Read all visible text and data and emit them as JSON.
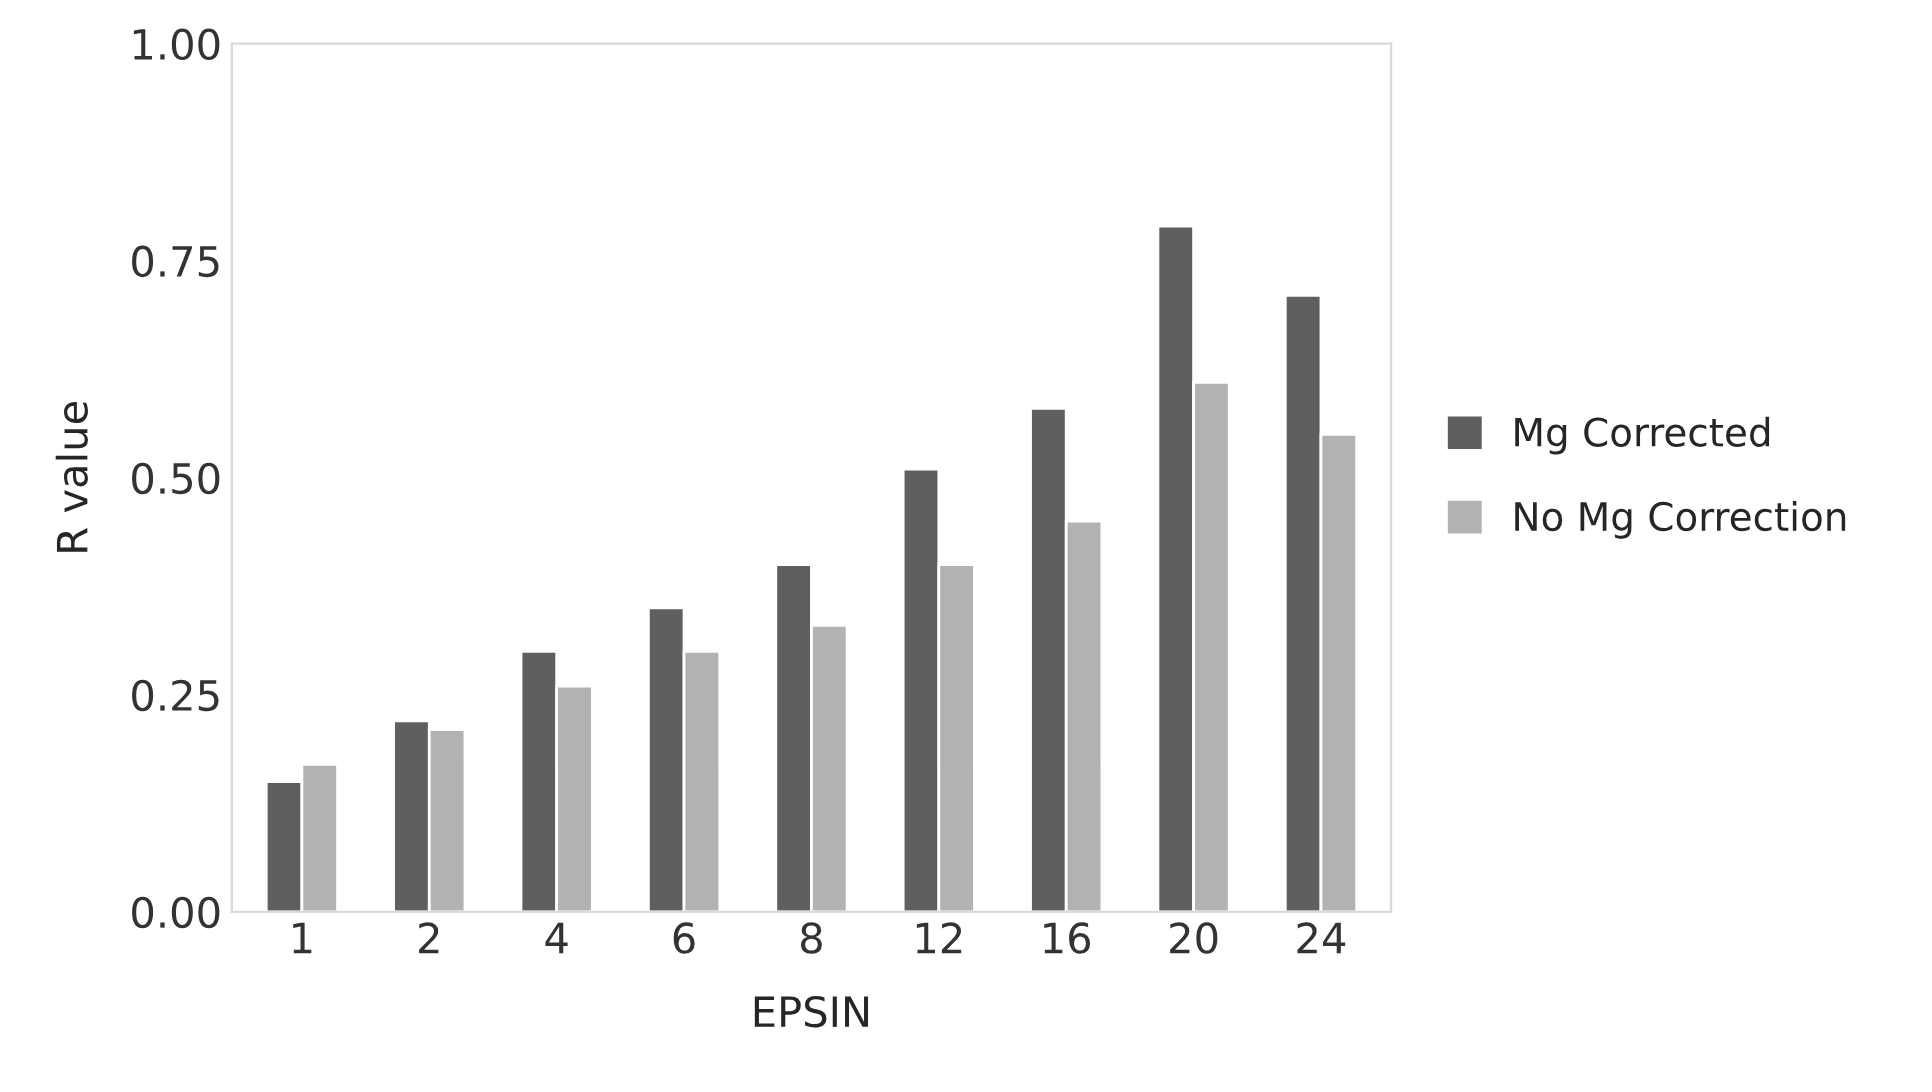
{
  "chart_data": {
    "type": "bar",
    "xlabel": "EPSIN",
    "ylabel": "R value",
    "categories": [
      "1",
      "2",
      "4",
      "6",
      "8",
      "12",
      "16",
      "20",
      "24"
    ],
    "series": [
      {
        "name": "Mg Corrected",
        "color": "#5f5f5f",
        "values": [
          0.15,
          0.22,
          0.3,
          0.35,
          0.4,
          0.51,
          0.58,
          0.79,
          0.71
        ]
      },
      {
        "name": "No Mg Correction",
        "color": "#b2b2b2",
        "values": [
          0.17,
          0.21,
          0.26,
          0.3,
          0.33,
          0.4,
          0.45,
          0.61,
          0.55
        ]
      }
    ],
    "ylim": [
      0,
      1
    ],
    "yticks": [
      {
        "value": 0,
        "label": "0.00"
      },
      {
        "value": 0.25,
        "label": "0.25"
      },
      {
        "value": 0.5,
        "label": "0.50"
      },
      {
        "value": 0.75,
        "label": "0.75"
      },
      {
        "value": 1,
        "label": "1.00"
      }
    ],
    "grid": false,
    "legend": "right"
  }
}
